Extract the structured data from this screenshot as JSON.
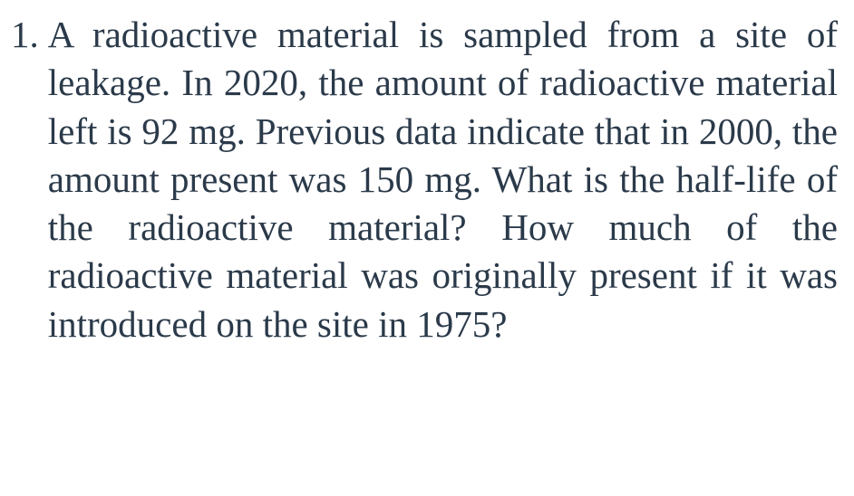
{
  "question": {
    "number": "1.",
    "text": "A radioactive material is sampled from a site of leakage. In 2020, the amount of radioactive material left is 92 mg. Previous data indicate that in 2000, the amount present was 150 mg. What is the half-life of the radioactive material? How much of the radioactive material was originally present if it was introduced on the site in 1975?"
  },
  "style": {
    "font_family": "Palatino Linotype, Book Antiqua, Palatino, Georgia, serif",
    "font_size_pt": 31,
    "text_color": "#2b3a4a",
    "background_color": "#ffffff",
    "text_align": "justify",
    "line_height": 1.3
  }
}
